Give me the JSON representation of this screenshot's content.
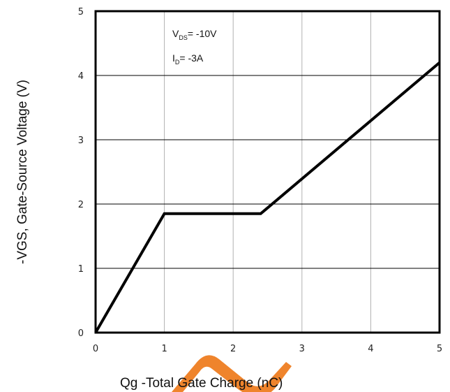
{
  "chart_data": {
    "type": "line",
    "xlabel": "Qg -Total Gate Charge (nC)",
    "ylabel": "-VGS, Gate-Source Voltage (V)",
    "xlim": [
      0,
      5
    ],
    "ylim": [
      0,
      5
    ],
    "x_ticks": [
      "0",
      "1",
      "2",
      "3",
      "4",
      "5"
    ],
    "y_ticks": [
      "0",
      "1",
      "2",
      "3",
      "4",
      "5"
    ],
    "grid": true,
    "series": [
      {
        "x": [
          0,
          1.0,
          2.4,
          5.0
        ],
        "y": [
          0,
          1.85,
          1.85,
          4.2
        ]
      }
    ],
    "annotations": [
      {
        "main": "V",
        "sub": "DS",
        "rest": "= -10V"
      },
      {
        "main": "I",
        "sub": "D",
        "rest": "= -3A"
      }
    ],
    "colors": {
      "line": "#000000",
      "grid": "#b0b0b0",
      "frame": "#000000",
      "watermark": "#ee7d21"
    }
  }
}
